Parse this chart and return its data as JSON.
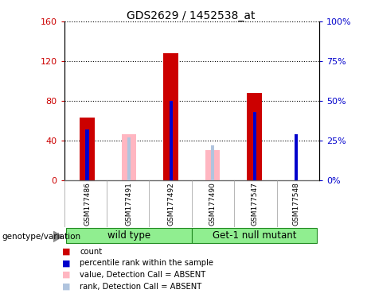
{
  "title": "GDS2629 / 1452538_at",
  "samples": [
    "GSM177486",
    "GSM177491",
    "GSM177492",
    "GSM177490",
    "GSM177547",
    "GSM177548"
  ],
  "count_values": [
    63,
    null,
    128,
    null,
    88,
    null
  ],
  "count_absent": [
    null,
    46,
    null,
    30,
    null,
    null
  ],
  "rank_values_pct": [
    32,
    null,
    50,
    null,
    43,
    29
  ],
  "rank_absent_pct": [
    null,
    27,
    null,
    22,
    null,
    null
  ],
  "ylim_left": [
    0,
    160
  ],
  "ylim_right": [
    0,
    100
  ],
  "yticks_left": [
    0,
    40,
    80,
    120,
    160
  ],
  "yticks_right": [
    0,
    25,
    50,
    75,
    100
  ],
  "count_color": "#cc0000",
  "rank_color": "#0000cc",
  "count_absent_color": "#ffb6c1",
  "rank_absent_color": "#b0c4de",
  "label_color_left": "#cc0000",
  "label_color_right": "#0000cc",
  "group1_name": "wild type",
  "group2_name": "Get-1 null mutant",
  "group_color": "#90EE90",
  "group_border": "#228B22",
  "legend_items": [
    [
      "#cc0000",
      "count"
    ],
    [
      "#0000cc",
      "percentile rank within the sample"
    ],
    [
      "#ffb6c1",
      "value, Detection Call = ABSENT"
    ],
    [
      "#b0c4de",
      "rank, Detection Call = ABSENT"
    ]
  ]
}
